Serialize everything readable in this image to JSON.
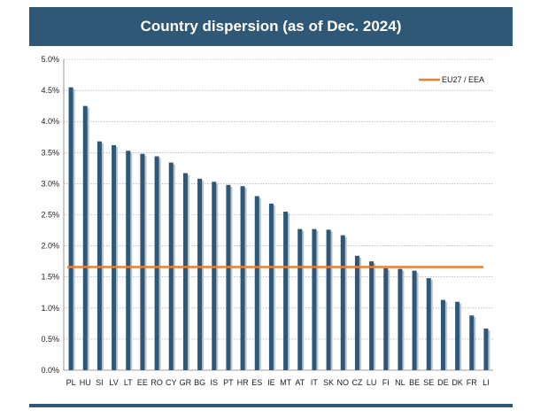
{
  "chart_data": {
    "type": "bar",
    "title": "Country dispersion (as of Dec. 2024)",
    "xlabel": "",
    "ylabel": "",
    "categories": [
      "PL",
      "HU",
      "SI",
      "LV",
      "LT",
      "EE",
      "RO",
      "CY",
      "GR",
      "BG",
      "IS",
      "PT",
      "HR",
      "ES",
      "IE",
      "MT",
      "AT",
      "IT",
      "SK",
      "NO",
      "CZ",
      "LU",
      "FI",
      "NL",
      "BE",
      "SE",
      "DE",
      "DK",
      "FR",
      "LI"
    ],
    "series": [
      {
        "values": [
          4.55,
          4.25,
          3.68,
          3.62,
          3.53,
          3.48,
          3.44,
          3.34,
          3.17,
          3.08,
          3.03,
          2.98,
          2.96,
          2.8,
          2.68,
          2.55,
          2.27,
          2.27,
          2.26,
          2.17,
          1.84,
          1.75,
          1.64,
          1.63,
          1.6,
          1.48,
          1.13,
          1.1,
          0.88,
          0.67
        ]
      }
    ],
    "reference_line": {
      "name": "EU27 / EEA",
      "value": 1.66
    },
    "ylim": [
      0,
      5.0
    ],
    "yticks": [
      "0.0%",
      "0.5%",
      "1.0%",
      "1.5%",
      "2.0%",
      "2.5%",
      "3.0%",
      "3.5%",
      "4.0%",
      "4.5%",
      "5.0%"
    ],
    "grid": true,
    "legend_position": "top-right",
    "colors": {
      "bar": "#2f5877",
      "bar_shadow": "#b9c3cc",
      "reference_line": "#ed7d31",
      "banner": "#2f5877",
      "grid": "#9a9a9a"
    }
  }
}
